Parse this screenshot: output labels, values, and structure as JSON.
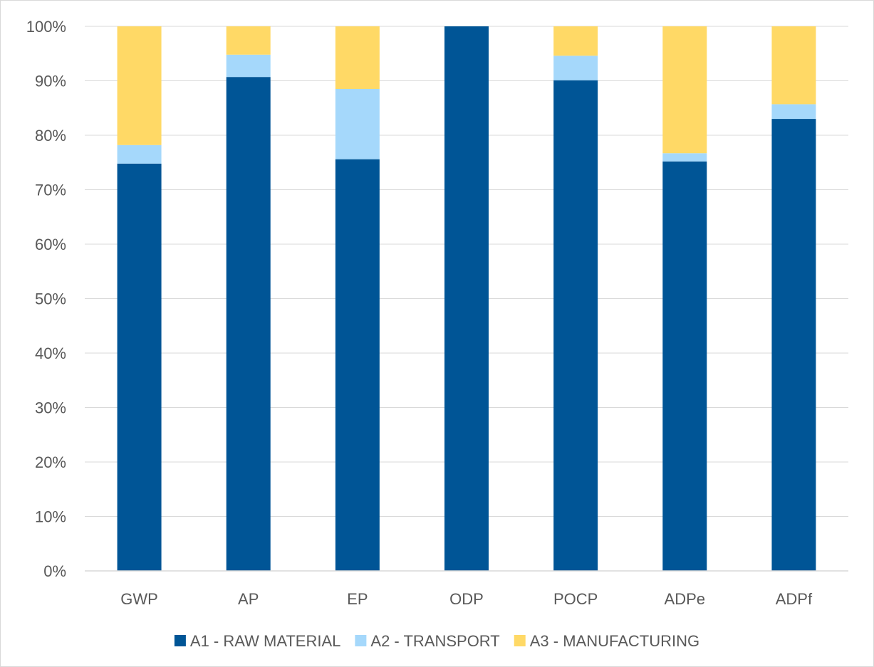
{
  "chart_data": {
    "type": "bar",
    "stacked": true,
    "normalized": true,
    "categories": [
      "GWP",
      "AP",
      "EP",
      "ODP",
      "POCP",
      "ADPe",
      "ADPf"
    ],
    "series": [
      {
        "name": "A1 - RAW MATERIAL",
        "color": "#005596",
        "values": [
          74.8,
          90.7,
          75.6,
          100.0,
          90.1,
          75.2,
          83.0
        ]
      },
      {
        "name": "A2 - TRANSPORT",
        "color": "#a5d8fb",
        "values": [
          3.4,
          4.1,
          12.9,
          0.0,
          4.5,
          1.5,
          2.7
        ]
      },
      {
        "name": "A3 - MANUFACTURING",
        "color": "#ffd966",
        "values": [
          21.8,
          5.2,
          11.5,
          0.0,
          5.4,
          23.3,
          14.3
        ]
      }
    ],
    "y_ticks": [
      "0%",
      "10%",
      "20%",
      "30%",
      "40%",
      "50%",
      "60%",
      "70%",
      "80%",
      "90%",
      "100%"
    ],
    "ylim": [
      0,
      100
    ],
    "grid": true,
    "legend_position": "bottom"
  }
}
